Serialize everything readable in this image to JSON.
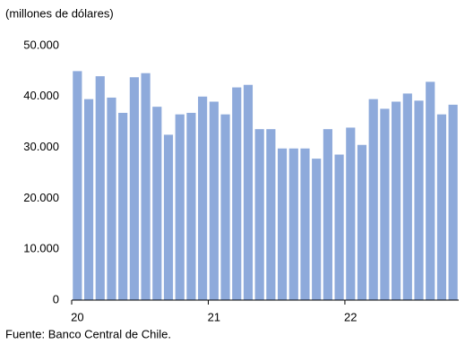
{
  "chart_data": {
    "type": "bar",
    "title": "(millones de dólares)",
    "source": "Fuente: Banco Central de Chile.",
    "categories": [
      "20",
      null,
      null,
      null,
      null,
      null,
      null,
      null,
      null,
      null,
      null,
      null,
      "21",
      null,
      null,
      null,
      null,
      null,
      null,
      null,
      null,
      null,
      null,
      null,
      "22",
      null,
      null,
      null,
      null,
      null,
      null,
      null,
      null,
      null
    ],
    "values": [
      45000,
      39500,
      44000,
      39800,
      36800,
      43800,
      44600,
      38000,
      32500,
      36500,
      36800,
      40000,
      39000,
      36500,
      41800,
      42300,
      33600,
      33600,
      29800,
      29800,
      29800,
      27800,
      33600,
      28600,
      33900,
      30500,
      39500,
      37600,
      39000,
      40600,
      39200,
      42900,
      36500,
      38400
    ],
    "color": "#8eaadb",
    "ylim": [
      0,
      50000
    ],
    "yticks": [
      0,
      {
        "value": 10000,
        "label": "10.000"
      },
      {
        "value": 20000,
        "label": "20.000"
      },
      {
        "value": 30000,
        "label": "30.000"
      },
      {
        "value": 40000,
        "label": "40.000"
      },
      {
        "value": 50000,
        "label": "50.000"
      }
    ],
    "grid": false
  }
}
